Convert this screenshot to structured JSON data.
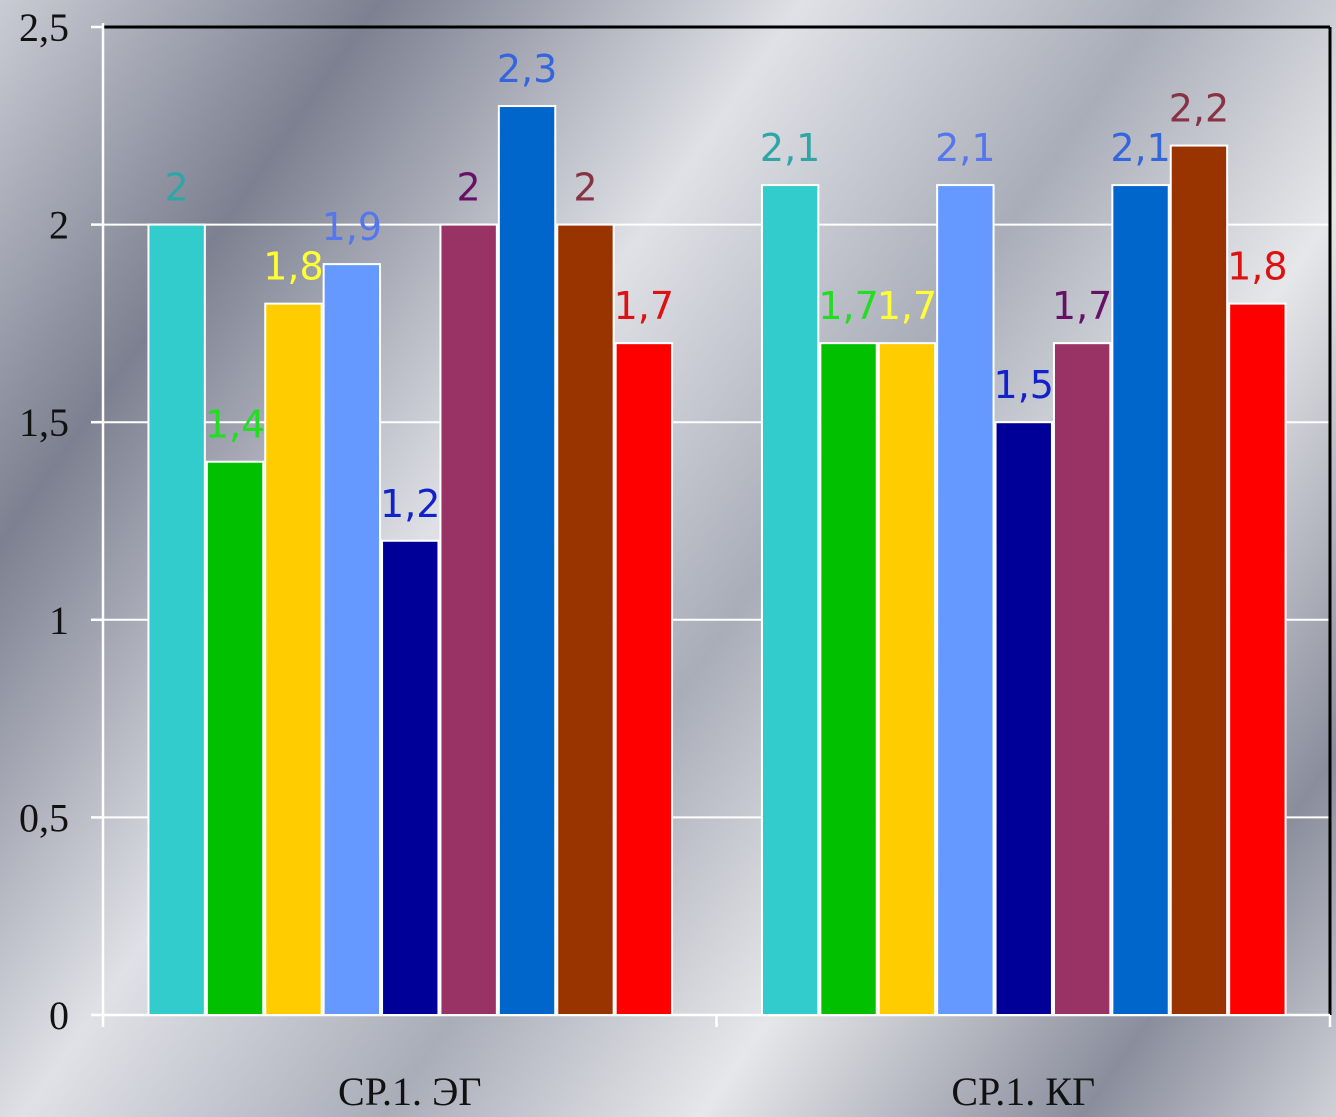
{
  "chart_data": {
    "type": "bar",
    "categories": [
      "СР.1. ЭГ",
      "СР.1. КГ"
    ],
    "series": [
      {
        "values": [
          2,
          2.1
        ],
        "labels": [
          "2",
          "2,1"
        ],
        "color": "#33cccc",
        "label_color": "#2fa6a6"
      },
      {
        "values": [
          1.4,
          1.7
        ],
        "labels": [
          "1,4",
          "1,7"
        ],
        "color": "#00c000",
        "label_color": "#22dd22"
      },
      {
        "values": [
          1.8,
          1.7
        ],
        "labels": [
          "1,8",
          "1,7"
        ],
        "color": "#ffcc00",
        "label_color": "#ffff33"
      },
      {
        "values": [
          1.9,
          2.1
        ],
        "labels": [
          "1,9",
          "2,1"
        ],
        "color": "#6699ff",
        "label_color": "#5577ee"
      },
      {
        "values": [
          1.2,
          1.5
        ],
        "labels": [
          "1,2",
          "1,5"
        ],
        "color": "#000099",
        "label_color": "#1122cc"
      },
      {
        "values": [
          2,
          1.7
        ],
        "labels": [
          "2",
          "1,7"
        ],
        "color": "#993366",
        "label_color": "#661166"
      },
      {
        "values": [
          2.3,
          2.1
        ],
        "labels": [
          "2,3",
          "2,1"
        ],
        "color": "#0066cc",
        "label_color": "#3366dd"
      },
      {
        "values": [
          2,
          2.2
        ],
        "labels": [
          "2",
          "2,2"
        ],
        "color": "#993300",
        "label_color": "#883344"
      },
      {
        "values": [
          1.7,
          1.8
        ],
        "labels": [
          "1,7",
          "1,8"
        ],
        "color": "#ff0000",
        "label_color": "#dd1111"
      }
    ],
    "ylim": [
      0,
      2.5
    ],
    "yticks": [
      0,
      0.5,
      1,
      1.5,
      2,
      2.5
    ],
    "ytick_labels": [
      "0",
      "0,5",
      "1",
      "1,5",
      "2",
      "2,5"
    ],
    "grid": true,
    "xlabel": "",
    "ylabel": ""
  }
}
